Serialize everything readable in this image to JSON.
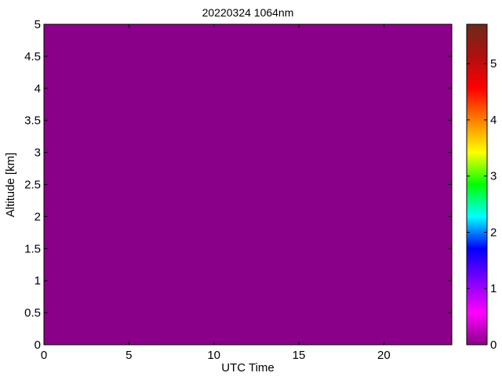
{
  "chart_data": {
    "type": "heatmap",
    "title": "20220324 1064nm",
    "xlabel": "UTC Time",
    "ylabel": "Altitude [km]",
    "xlim": [
      0,
      24
    ],
    "ylim": [
      0,
      5
    ],
    "xticks": [
      0,
      5,
      10,
      15,
      20
    ],
    "yticks": [
      0,
      0.5,
      1,
      1.5,
      2,
      2.5,
      3,
      3.5,
      4,
      4.5,
      5
    ],
    "values_uniform": 0,
    "fill_color": "#8b0088",
    "colorbar": {
      "range": [
        0,
        5.7
      ],
      "ticks": [
        0,
        1,
        2,
        3,
        4,
        5
      ],
      "colormap": [
        "#8b0088",
        "#ff00ff",
        "#8000ff",
        "#0000ff",
        "#00ffff",
        "#00ff00",
        "#ffff00",
        "#ff8000",
        "#ff0000",
        "#b01010",
        "#6b2a1a"
      ]
    },
    "grid": false
  }
}
